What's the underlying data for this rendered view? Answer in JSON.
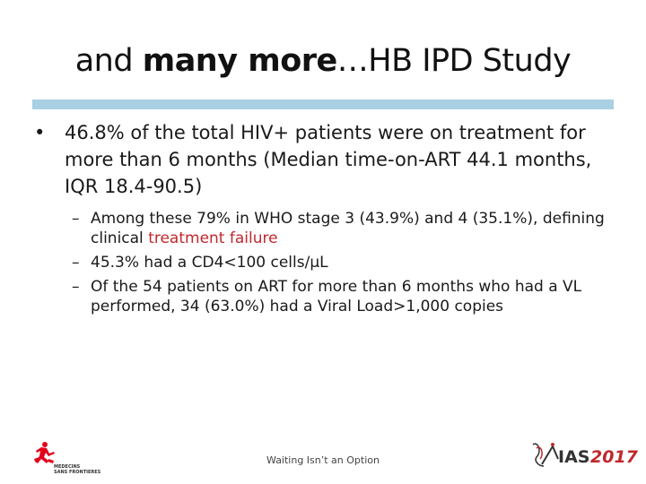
{
  "slide": {
    "title_prefix": "and ",
    "title_bold": "many more",
    "title_suffix": "…HB IPD Study"
  },
  "bullets": [
    {
      "marker": "•",
      "text": "46.8% of the total HIV+ patients were on treatment for more than 6 months (Median time-on-ART 44.1 months, IQR 18.4-90.5)"
    }
  ],
  "subbullets": [
    {
      "marker": "–",
      "text_before": "Among these 79% in WHO stage 3 (43.9%) and 4 (35.1%), defining clinical ",
      "highlight": "treatment failure",
      "highlight_color": "#c0282d"
    },
    {
      "marker": "–",
      "text": "45.3% had a CD4<100 cells/µL"
    },
    {
      "marker": "–",
      "text": "Of the 54 patients on ART for more than 6 months who had a VL performed, 34 (63.0%) had a Viral Load>1,000 copies"
    }
  ],
  "footer": {
    "text": "Waiting Isn’t an Option"
  },
  "logos": {
    "left": {
      "line1": "MEDECINS",
      "line2": "SANS FRONTIERES",
      "icon": "msf-runner-icon",
      "color": "#e2001a"
    },
    "right": {
      "text_ias": "IAS",
      "text_year": "2017",
      "icon": "ias-ribbon-icon",
      "year_color": "#c0282d"
    }
  },
  "colors": {
    "accent_rule": "#a9d0e3",
    "highlight": "#c0282d"
  }
}
